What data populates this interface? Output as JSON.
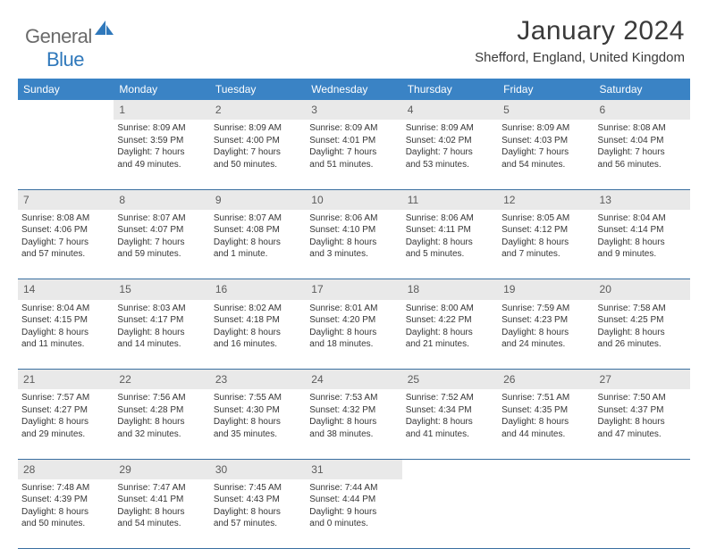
{
  "brand": {
    "part1": "General",
    "part2": "Blue"
  },
  "title": "January 2024",
  "location": "Shefford, England, United Kingdom",
  "colors": {
    "header_bg": "#3a83c5",
    "header_text": "#ffffff",
    "daynum_bg": "#e9e9e9",
    "daynum_text": "#5c5c5c",
    "body_text": "#363636",
    "rule": "#3a6fa0",
    "logo_gray": "#6a6a6a",
    "logo_blue": "#2f78bb",
    "page_bg": "#ffffff"
  },
  "typography": {
    "title_fontsize": 30,
    "location_fontsize": 15,
    "weekday_fontsize": 12,
    "daynum_fontsize": 12,
    "cell_fontsize": 10
  },
  "weekdays": [
    "Sunday",
    "Monday",
    "Tuesday",
    "Wednesday",
    "Thursday",
    "Friday",
    "Saturday"
  ],
  "weeks": [
    [
      null,
      {
        "n": "1",
        "sr": "Sunrise: 8:09 AM",
        "ss": "Sunset: 3:59 PM",
        "d1": "Daylight: 7 hours",
        "d2": "and 49 minutes."
      },
      {
        "n": "2",
        "sr": "Sunrise: 8:09 AM",
        "ss": "Sunset: 4:00 PM",
        "d1": "Daylight: 7 hours",
        "d2": "and 50 minutes."
      },
      {
        "n": "3",
        "sr": "Sunrise: 8:09 AM",
        "ss": "Sunset: 4:01 PM",
        "d1": "Daylight: 7 hours",
        "d2": "and 51 minutes."
      },
      {
        "n": "4",
        "sr": "Sunrise: 8:09 AM",
        "ss": "Sunset: 4:02 PM",
        "d1": "Daylight: 7 hours",
        "d2": "and 53 minutes."
      },
      {
        "n": "5",
        "sr": "Sunrise: 8:09 AM",
        "ss": "Sunset: 4:03 PM",
        "d1": "Daylight: 7 hours",
        "d2": "and 54 minutes."
      },
      {
        "n": "6",
        "sr": "Sunrise: 8:08 AM",
        "ss": "Sunset: 4:04 PM",
        "d1": "Daylight: 7 hours",
        "d2": "and 56 minutes."
      }
    ],
    [
      {
        "n": "7",
        "sr": "Sunrise: 8:08 AM",
        "ss": "Sunset: 4:06 PM",
        "d1": "Daylight: 7 hours",
        "d2": "and 57 minutes."
      },
      {
        "n": "8",
        "sr": "Sunrise: 8:07 AM",
        "ss": "Sunset: 4:07 PM",
        "d1": "Daylight: 7 hours",
        "d2": "and 59 minutes."
      },
      {
        "n": "9",
        "sr": "Sunrise: 8:07 AM",
        "ss": "Sunset: 4:08 PM",
        "d1": "Daylight: 8 hours",
        "d2": "and 1 minute."
      },
      {
        "n": "10",
        "sr": "Sunrise: 8:06 AM",
        "ss": "Sunset: 4:10 PM",
        "d1": "Daylight: 8 hours",
        "d2": "and 3 minutes."
      },
      {
        "n": "11",
        "sr": "Sunrise: 8:06 AM",
        "ss": "Sunset: 4:11 PM",
        "d1": "Daylight: 8 hours",
        "d2": "and 5 minutes."
      },
      {
        "n": "12",
        "sr": "Sunrise: 8:05 AM",
        "ss": "Sunset: 4:12 PM",
        "d1": "Daylight: 8 hours",
        "d2": "and 7 minutes."
      },
      {
        "n": "13",
        "sr": "Sunrise: 8:04 AM",
        "ss": "Sunset: 4:14 PM",
        "d1": "Daylight: 8 hours",
        "d2": "and 9 minutes."
      }
    ],
    [
      {
        "n": "14",
        "sr": "Sunrise: 8:04 AM",
        "ss": "Sunset: 4:15 PM",
        "d1": "Daylight: 8 hours",
        "d2": "and 11 minutes."
      },
      {
        "n": "15",
        "sr": "Sunrise: 8:03 AM",
        "ss": "Sunset: 4:17 PM",
        "d1": "Daylight: 8 hours",
        "d2": "and 14 minutes."
      },
      {
        "n": "16",
        "sr": "Sunrise: 8:02 AM",
        "ss": "Sunset: 4:18 PM",
        "d1": "Daylight: 8 hours",
        "d2": "and 16 minutes."
      },
      {
        "n": "17",
        "sr": "Sunrise: 8:01 AM",
        "ss": "Sunset: 4:20 PM",
        "d1": "Daylight: 8 hours",
        "d2": "and 18 minutes."
      },
      {
        "n": "18",
        "sr": "Sunrise: 8:00 AM",
        "ss": "Sunset: 4:22 PM",
        "d1": "Daylight: 8 hours",
        "d2": "and 21 minutes."
      },
      {
        "n": "19",
        "sr": "Sunrise: 7:59 AM",
        "ss": "Sunset: 4:23 PM",
        "d1": "Daylight: 8 hours",
        "d2": "and 24 minutes."
      },
      {
        "n": "20",
        "sr": "Sunrise: 7:58 AM",
        "ss": "Sunset: 4:25 PM",
        "d1": "Daylight: 8 hours",
        "d2": "and 26 minutes."
      }
    ],
    [
      {
        "n": "21",
        "sr": "Sunrise: 7:57 AM",
        "ss": "Sunset: 4:27 PM",
        "d1": "Daylight: 8 hours",
        "d2": "and 29 minutes."
      },
      {
        "n": "22",
        "sr": "Sunrise: 7:56 AM",
        "ss": "Sunset: 4:28 PM",
        "d1": "Daylight: 8 hours",
        "d2": "and 32 minutes."
      },
      {
        "n": "23",
        "sr": "Sunrise: 7:55 AM",
        "ss": "Sunset: 4:30 PM",
        "d1": "Daylight: 8 hours",
        "d2": "and 35 minutes."
      },
      {
        "n": "24",
        "sr": "Sunrise: 7:53 AM",
        "ss": "Sunset: 4:32 PM",
        "d1": "Daylight: 8 hours",
        "d2": "and 38 minutes."
      },
      {
        "n": "25",
        "sr": "Sunrise: 7:52 AM",
        "ss": "Sunset: 4:34 PM",
        "d1": "Daylight: 8 hours",
        "d2": "and 41 minutes."
      },
      {
        "n": "26",
        "sr": "Sunrise: 7:51 AM",
        "ss": "Sunset: 4:35 PM",
        "d1": "Daylight: 8 hours",
        "d2": "and 44 minutes."
      },
      {
        "n": "27",
        "sr": "Sunrise: 7:50 AM",
        "ss": "Sunset: 4:37 PM",
        "d1": "Daylight: 8 hours",
        "d2": "and 47 minutes."
      }
    ],
    [
      {
        "n": "28",
        "sr": "Sunrise: 7:48 AM",
        "ss": "Sunset: 4:39 PM",
        "d1": "Daylight: 8 hours",
        "d2": "and 50 minutes."
      },
      {
        "n": "29",
        "sr": "Sunrise: 7:47 AM",
        "ss": "Sunset: 4:41 PM",
        "d1": "Daylight: 8 hours",
        "d2": "and 54 minutes."
      },
      {
        "n": "30",
        "sr": "Sunrise: 7:45 AM",
        "ss": "Sunset: 4:43 PM",
        "d1": "Daylight: 8 hours",
        "d2": "and 57 minutes."
      },
      {
        "n": "31",
        "sr": "Sunrise: 7:44 AM",
        "ss": "Sunset: 4:44 PM",
        "d1": "Daylight: 9 hours",
        "d2": "and 0 minutes."
      },
      null,
      null,
      null
    ]
  ]
}
